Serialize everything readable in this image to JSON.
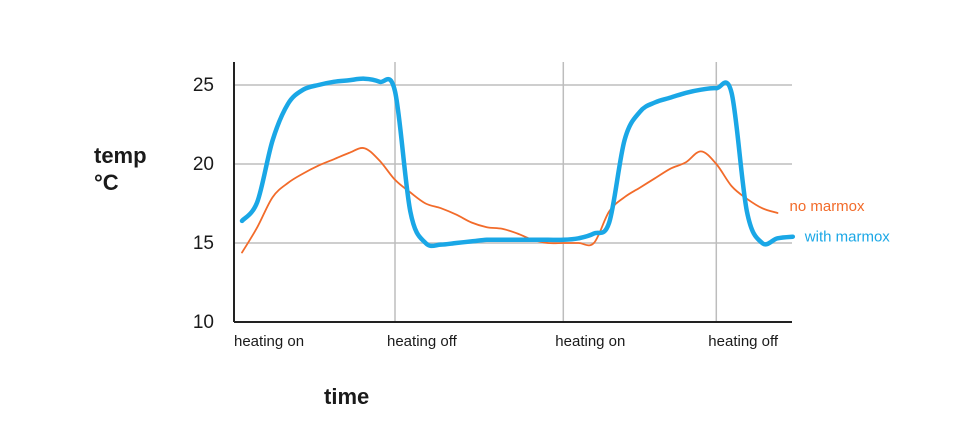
{
  "chart_data": {
    "type": "line",
    "title": "",
    "xlabel": "time",
    "ylabel": "temp",
    "ylabel_unit": "°C",
    "ylim": [
      10,
      26
    ],
    "yticks": [
      10,
      15,
      20,
      25
    ],
    "grid": true,
    "x_event_labels": [
      {
        "x": 0,
        "label": "heating on"
      },
      {
        "x": 10,
        "label": "heating off"
      },
      {
        "x": 21,
        "label": "heating on"
      },
      {
        "x": 31,
        "label": "heating off"
      }
    ],
    "vertical_gridlines_x": [
      10,
      21,
      31
    ],
    "series": [
      {
        "name": "no marmox",
        "color": "#f26b2a",
        "points": [
          [
            0,
            14.4
          ],
          [
            1,
            16.0
          ],
          [
            2,
            17.9
          ],
          [
            3,
            18.8
          ],
          [
            4,
            19.4
          ],
          [
            5,
            19.9
          ],
          [
            6,
            20.3
          ],
          [
            7,
            20.7
          ],
          [
            8,
            21.0
          ],
          [
            9,
            20.2
          ],
          [
            10,
            19.0
          ],
          [
            11,
            18.2
          ],
          [
            12,
            17.5
          ],
          [
            13,
            17.2
          ],
          [
            14,
            16.8
          ],
          [
            15,
            16.3
          ],
          [
            16,
            16.0
          ],
          [
            17,
            15.9
          ],
          [
            18,
            15.6
          ],
          [
            19,
            15.2
          ],
          [
            20,
            15.0
          ],
          [
            21,
            15.0
          ],
          [
            22,
            15.0
          ],
          [
            23,
            15.0
          ],
          [
            24,
            17.0
          ],
          [
            25,
            17.9
          ],
          [
            26,
            18.5
          ],
          [
            27,
            19.1
          ],
          [
            28,
            19.7
          ],
          [
            29,
            20.1
          ],
          [
            30,
            20.8
          ],
          [
            31,
            20.0
          ],
          [
            32,
            18.6
          ],
          [
            33,
            17.8
          ],
          [
            34,
            17.2
          ],
          [
            35,
            16.9
          ]
        ]
      },
      {
        "name": "with marmox",
        "color": "#1aa7e6",
        "points": [
          [
            0,
            16.4
          ],
          [
            1,
            17.6
          ],
          [
            2,
            21.5
          ],
          [
            3,
            23.8
          ],
          [
            4,
            24.7
          ],
          [
            5,
            25.0
          ],
          [
            6,
            25.2
          ],
          [
            7,
            25.3
          ],
          [
            8,
            25.4
          ],
          [
            9,
            25.2
          ],
          [
            10,
            24.6
          ],
          [
            11,
            17.0
          ],
          [
            12,
            15.0
          ],
          [
            13,
            14.9
          ],
          [
            14,
            15.0
          ],
          [
            15,
            15.1
          ],
          [
            16,
            15.2
          ],
          [
            17,
            15.2
          ],
          [
            18,
            15.2
          ],
          [
            19,
            15.2
          ],
          [
            20,
            15.2
          ],
          [
            21,
            15.2
          ],
          [
            22,
            15.3
          ],
          [
            23,
            15.6
          ],
          [
            24,
            16.3
          ],
          [
            25,
            21.5
          ],
          [
            26,
            23.3
          ],
          [
            27,
            23.9
          ],
          [
            28,
            24.2
          ],
          [
            29,
            24.5
          ],
          [
            30,
            24.7
          ],
          [
            31,
            24.8
          ],
          [
            32,
            24.5
          ],
          [
            33,
            17.0
          ],
          [
            34,
            15.0
          ],
          [
            35,
            15.3
          ],
          [
            36,
            15.4
          ]
        ]
      }
    ]
  }
}
